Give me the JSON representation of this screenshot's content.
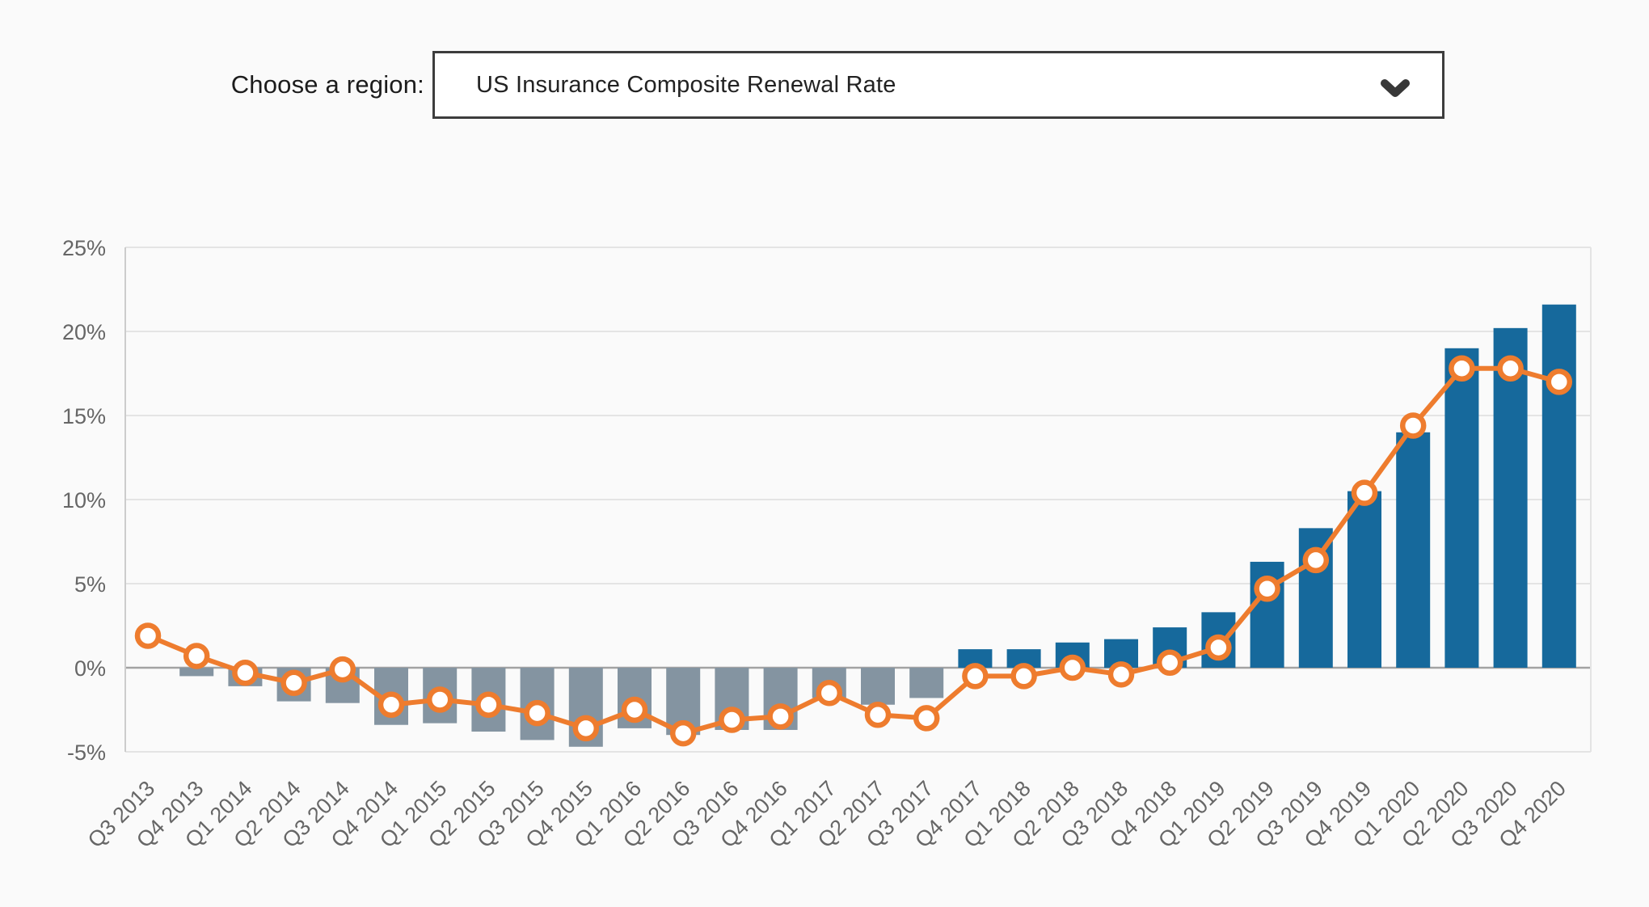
{
  "page": {
    "background": "#fafafa"
  },
  "region_selector": {
    "label": "Choose a region:",
    "value": "US Insurance Composite Renewal Rate"
  },
  "chart_data": {
    "type": "bar",
    "subtype": "column-and-line-combo",
    "title": "",
    "xlabel": "",
    "ylabel": "",
    "ylim": [
      -5,
      25
    ],
    "grid": true,
    "legend_position": "none",
    "y_ticks": [
      {
        "label": "25%",
        "value": 25
      },
      {
        "label": "20%",
        "value": 20
      },
      {
        "label": "15%",
        "value": 15
      },
      {
        "label": "10%",
        "value": 10
      },
      {
        "label": "5%",
        "value": 5
      },
      {
        "label": "0%",
        "value": 0
      },
      {
        "label": "-5%",
        "value": -5
      }
    ],
    "categories": [
      "Q3 2013",
      "Q4 2013",
      "Q1 2014",
      "Q2 2014",
      "Q3 2014",
      "Q4 2014",
      "Q1 2015",
      "Q2 2015",
      "Q3 2015",
      "Q4 2015",
      "Q1 2016",
      "Q2 2016",
      "Q3 2016",
      "Q4 2016",
      "Q1 2017",
      "Q2 2017",
      "Q3 2017",
      "Q4 2017",
      "Q1 2018",
      "Q2 2018",
      "Q3 2018",
      "Q4 2018",
      "Q1 2019",
      "Q2 2019",
      "Q3 2019",
      "Q4 2019",
      "Q1 2020",
      "Q2 2020",
      "Q3 2020",
      "Q4 2020"
    ],
    "series": [
      {
        "id": "columns",
        "type": "column",
        "color_positive": "#16699c",
        "color_negative": "#8494a1",
        "values": [
          0.0,
          -0.5,
          -1.1,
          -2.0,
          -2.1,
          -3.4,
          -3.3,
          -3.8,
          -4.3,
          -4.7,
          -3.6,
          -4.0,
          -3.7,
          -3.7,
          -1.8,
          -2.2,
          -1.8,
          1.1,
          1.1,
          1.5,
          1.7,
          2.4,
          3.3,
          6.3,
          8.3,
          10.5,
          14.0,
          19.0,
          20.2,
          21.6
        ]
      },
      {
        "id": "line",
        "type": "line",
        "color": "#ee7c2e",
        "marker": "open-circle-white",
        "values": [
          1.9,
          0.7,
          -0.3,
          -0.9,
          -0.1,
          -2.2,
          -1.9,
          -2.2,
          -2.7,
          -3.6,
          -2.5,
          -3.9,
          -3.1,
          -2.9,
          -1.5,
          -2.8,
          -3.0,
          -0.5,
          -0.5,
          0.0,
          -0.4,
          0.3,
          1.2,
          4.7,
          6.4,
          10.4,
          14.4,
          17.8,
          17.8,
          17.0
        ]
      }
    ],
    "axis_colors": {
      "grid_line": "#e4e4e4",
      "zero_line": "#a3a3a3",
      "axis_line": "#cccccc",
      "tick_label": "#666666"
    }
  }
}
